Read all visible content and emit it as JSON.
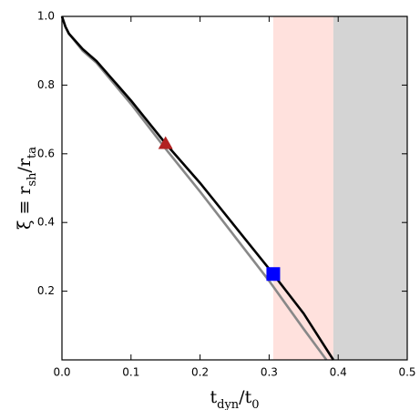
{
  "chart_data": {
    "type": "line",
    "xlabel": [
      {
        "text": "t"
      },
      {
        "text": "dyn",
        "sub": true
      },
      {
        "text": "/t"
      },
      {
        "text": "0",
        "sub": true
      }
    ],
    "ylabel": [
      {
        "text": "ξ ≡ r"
      },
      {
        "text": "sh",
        "sub": true
      },
      {
        "text": "/r"
      },
      {
        "text": "ta",
        "sub": true
      }
    ],
    "xlim": [
      0,
      0.5
    ],
    "ylim": [
      0,
      1
    ],
    "xticks": [
      {
        "value": 0,
        "label": "0.0"
      },
      0.1,
      0.2,
      0.3,
      0.4,
      0.5
    ],
    "yticks": [
      0.2,
      0.4,
      0.6,
      0.8,
      {
        "value": 1,
        "label": "1.0"
      }
    ],
    "spans": [
      {
        "xlim": [
          0.306,
          0.393
        ],
        "color": "#ffe1dd"
      },
      {
        "xlim": [
          0.393,
          0.5
        ],
        "color": "#d4d4d4"
      }
    ],
    "series": [
      {
        "color": "#888888",
        "x": [
          0,
          0.005,
          0.01,
          0.03,
          0.05,
          0.1,
          0.15,
          0.2,
          0.25,
          0.3,
          0.35,
          0.383
        ],
        "values": [
          1.0,
          0.97,
          0.95,
          0.9,
          0.865,
          0.745,
          0.615,
          0.49,
          0.36,
          0.23,
          0.09,
          0.0
        ]
      },
      {
        "color": "#000000",
        "x": [
          0,
          0.005,
          0.01,
          0.03,
          0.05,
          0.1,
          0.15,
          0.2,
          0.25,
          0.3,
          0.35,
          0.393
        ],
        "values": [
          1.0,
          0.97,
          0.95,
          0.905,
          0.87,
          0.755,
          0.63,
          0.515,
          0.39,
          0.265,
          0.135,
          0.0
        ]
      }
    ],
    "markers": [
      {
        "shape": "triangle",
        "color": "#b22222",
        "x": 0.15,
        "y": 0.63
      },
      {
        "shape": "square",
        "color": "#0000ff",
        "x": 0.306,
        "y": 0.25
      }
    ]
  }
}
